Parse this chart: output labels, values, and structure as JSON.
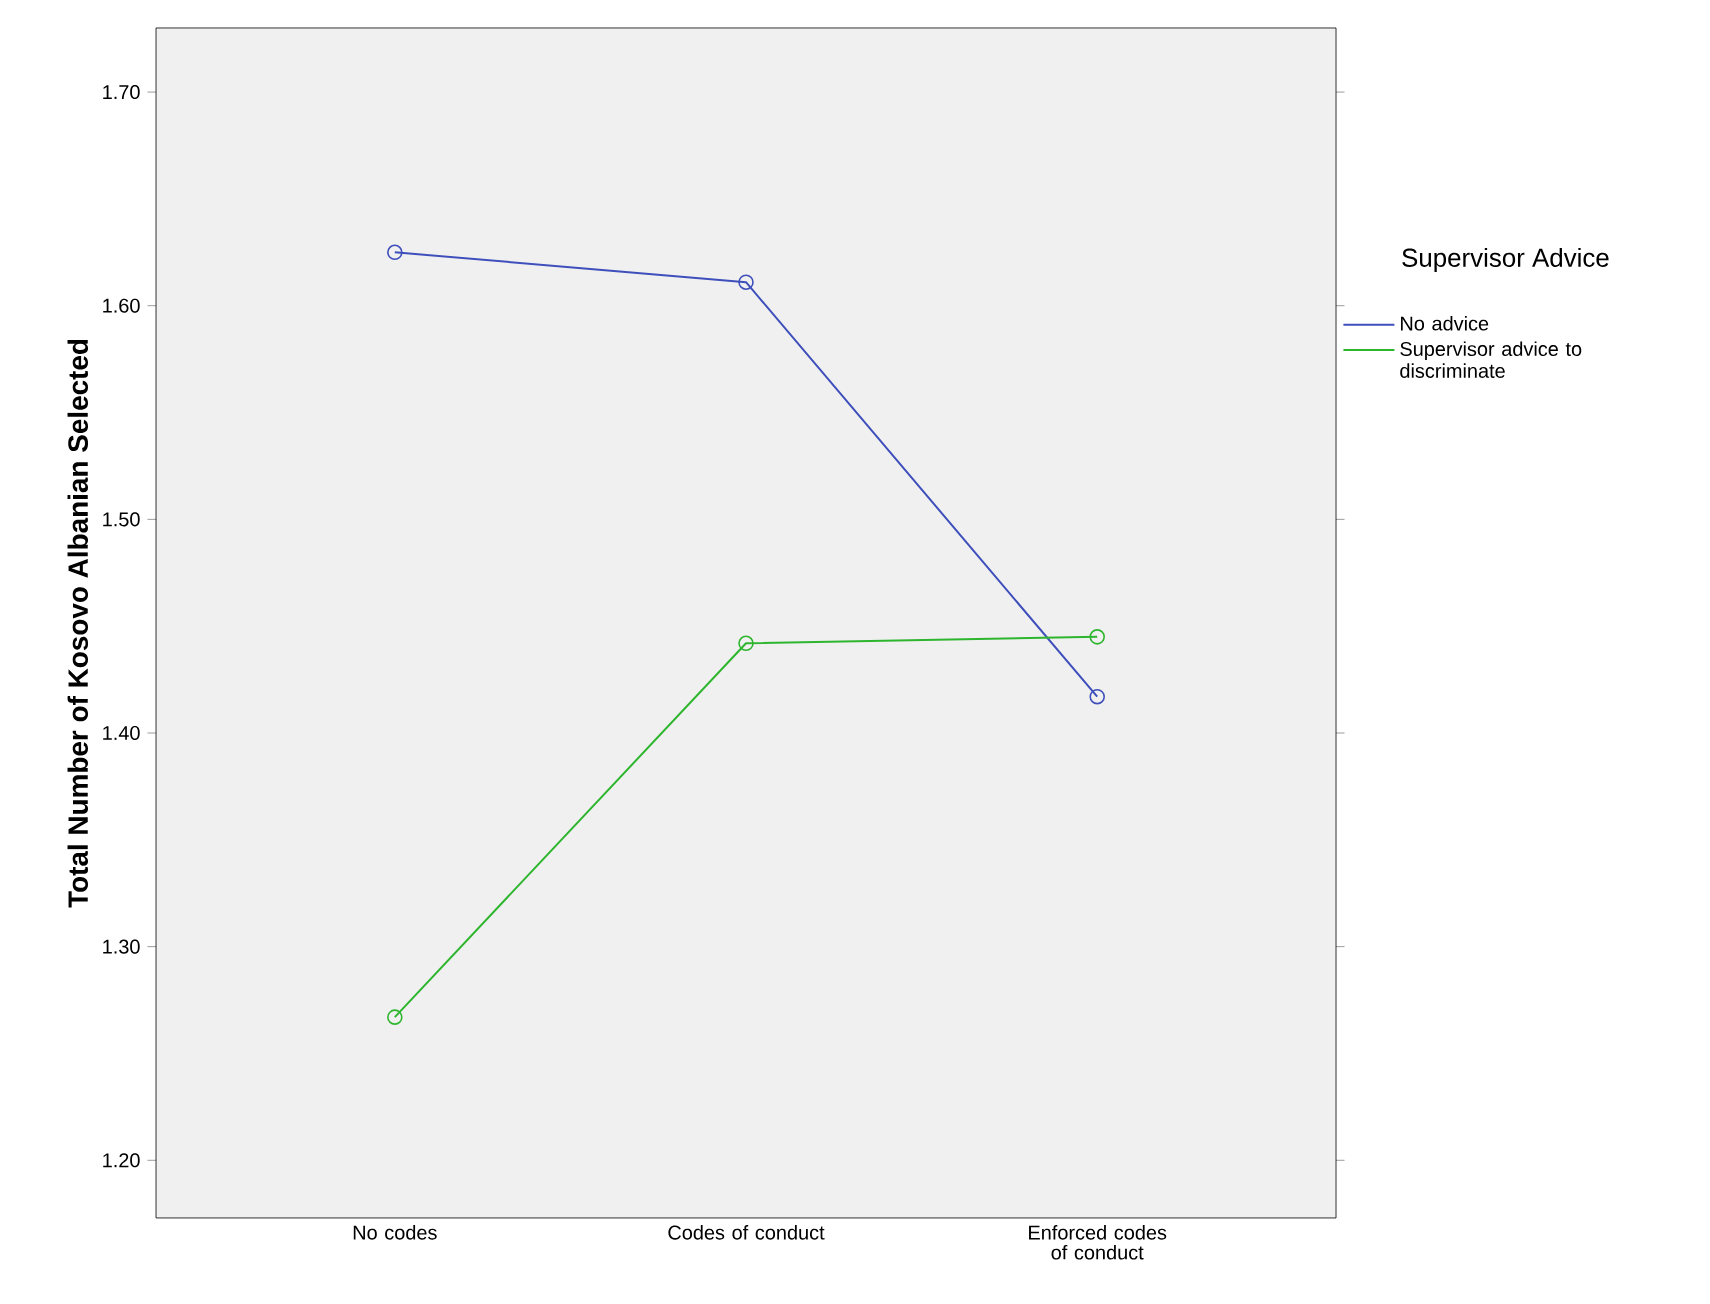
{
  "chart_data": {
    "type": "line",
    "ylabel": "Total Number of Kosovo Albanian Selected",
    "legend_title": "Supervisor Advice",
    "categories": [
      "No codes",
      "Codes of conduct",
      "Enforced codes of conduct"
    ],
    "series": [
      {
        "name": "No advice",
        "color": "#3e4fbb",
        "values": [
          1.625,
          1.611,
          1.417
        ]
      },
      {
        "name": "Supervisor advice to discriminate",
        "color": "#2db52d",
        "values": [
          1.267,
          1.442,
          1.445
        ]
      }
    ],
    "ylim": [
      1.173,
      1.73
    ],
    "yticks": [
      {
        "value": 1.2,
        "label": "1.20"
      },
      {
        "value": 1.3,
        "label": "1.30"
      },
      {
        "value": 1.4,
        "label": "1.40"
      },
      {
        "value": 1.5,
        "label": "1.50"
      },
      {
        "value": 1.6,
        "label": "1.60"
      },
      {
        "value": 1.7,
        "label": "1.70"
      }
    ],
    "marker": "circle",
    "line_style": "solid",
    "legend": "right",
    "grid": false
  }
}
